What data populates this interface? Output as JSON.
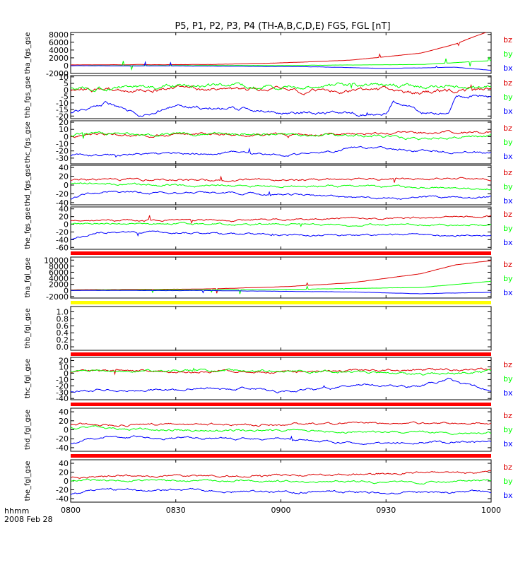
{
  "title": "P5, P1, P2, P3, P4 (TH-A,B,C,D,E) FGS, FGL [nT]",
  "footer": {
    "unit_label": "hhmm",
    "date_label": "2008 Feb 28"
  },
  "colors": {
    "bx": "#0000ff",
    "by": "#00ff00",
    "bz": "#dd0000",
    "bar_red": "#ff0000",
    "bar_yellow": "#ffff00",
    "frame": "#000000"
  },
  "chart_data": {
    "type": "line",
    "x_axis": {
      "range": [
        "0800",
        "1000"
      ],
      "ticks": [
        "0800",
        "0830",
        "0900",
        "0930",
        "1000"
      ],
      "tick_minutes": [
        0,
        30,
        60,
        90,
        120
      ]
    },
    "panels": [
      {
        "ylabel": "tha_fgs_gse",
        "ticks": [
          "-2000",
          "0",
          "2000",
          "4000",
          "6000",
          "8000"
        ],
        "ylim": [
          -2000,
          8500
        ],
        "series": [
          {
            "name": "bz",
            "anchors": [
              [
                0,
                200
              ],
              [
                40,
                300
              ],
              [
                60,
                700
              ],
              [
                80,
                1400
              ],
              [
                100,
                3200
              ],
              [
                110,
                5600
              ],
              [
                115,
                7400
              ],
              [
                120,
                9000
              ]
            ],
            "noise": 15
          },
          {
            "name": "by",
            "anchors": [
              [
                0,
                0
              ],
              [
                60,
                50
              ],
              [
                100,
                300
              ],
              [
                120,
                1300
              ]
            ],
            "noise": 15
          },
          {
            "name": "bx",
            "anchors": [
              [
                0,
                0
              ],
              [
                40,
                -100
              ],
              [
                70,
                -300
              ],
              [
                90,
                -700
              ],
              [
                110,
                -400
              ],
              [
                120,
                -1200
              ]
            ],
            "noise": 15
          }
        ]
      },
      {
        "ylabel": "thb_fgs_gse",
        "ticks": [
          "-20",
          "-15",
          "-10",
          "-5",
          "0",
          "5",
          "10"
        ],
        "ylim": [
          -22,
          11
        ],
        "series": [
          {
            "name": "bz",
            "anchors": [
              [
                0,
                0
              ],
              [
                20,
                1
              ],
              [
                60,
                0
              ],
              [
                100,
                -1
              ],
              [
                120,
                0
              ]
            ],
            "noise": 1
          },
          {
            "name": "by",
            "anchors": [
              [
                0,
                2
              ],
              [
                60,
                3
              ],
              [
                100,
                3
              ],
              [
                120,
                1
              ]
            ],
            "noise": 1
          },
          {
            "name": "bx",
            "anchors": [
              [
                0,
                -17
              ],
              [
                5,
                -14
              ],
              [
                10,
                -10
              ],
              [
                20,
                -19
              ],
              [
                30,
                -12
              ],
              [
                40,
                -13
              ],
              [
                50,
                -15
              ],
              [
                60,
                -17
              ],
              [
                75,
                -18
              ],
              [
                90,
                -19
              ],
              [
                92,
                -10
              ],
              [
                97,
                -12
              ],
              [
                100,
                -17
              ],
              [
                108,
                -17
              ],
              [
                110,
                -6
              ],
              [
                120,
                -4
              ]
            ],
            "noise": 0.8
          }
        ]
      },
      {
        "ylabel": "thc_fgs_gse",
        "ticks": [
          "-30",
          "-20",
          "-10",
          "0",
          "10",
          "20"
        ],
        "ylim": [
          -38,
          22
        ],
        "series": [
          {
            "name": "bz",
            "anchors": [
              [
                0,
                2
              ],
              [
                60,
                3
              ],
              [
                100,
                5
              ],
              [
                120,
                6
              ]
            ],
            "noise": 1.2
          },
          {
            "name": "by",
            "anchors": [
              [
                0,
                3
              ],
              [
                60,
                4
              ],
              [
                100,
                -2
              ],
              [
                120,
                1
              ]
            ],
            "noise": 1.2
          },
          {
            "name": "bx",
            "anchors": [
              [
                0,
                -26
              ],
              [
                30,
                -24
              ],
              [
                50,
                -22
              ],
              [
                60,
                -26
              ],
              [
                75,
                -22
              ],
              [
                80,
                -14
              ],
              [
                100,
                -19
              ],
              [
                120,
                -23
              ]
            ],
            "noise": 1
          }
        ]
      },
      {
        "ylabel": "thd_fgs_gse",
        "ticks": [
          "-40",
          "-20",
          "0",
          "20",
          "40"
        ],
        "ylim": [
          -45,
          45
        ],
        "series": [
          {
            "name": "bz",
            "anchors": [
              [
                0,
                12
              ],
              [
                30,
                12
              ],
              [
                60,
                12
              ],
              [
                100,
                15
              ],
              [
                120,
                15
              ]
            ],
            "noise": 1.5
          },
          {
            "name": "by",
            "anchors": [
              [
                0,
                5
              ],
              [
                30,
                0
              ],
              [
                60,
                -2
              ],
              [
                100,
                -5
              ],
              [
                120,
                -8
              ]
            ],
            "noise": 1.5
          },
          {
            "name": "bx",
            "anchors": [
              [
                0,
                -30
              ],
              [
                5,
                -20
              ],
              [
                10,
                -15
              ],
              [
                30,
                -18
              ],
              [
                60,
                -20
              ],
              [
                80,
                -30
              ],
              [
                100,
                -28
              ],
              [
                120,
                -28
              ]
            ],
            "noise": 1.5
          }
        ]
      },
      {
        "ylabel": "the_fgs_gse",
        "ticks": [
          "-60",
          "-40",
          "-20",
          "0",
          "20",
          "40"
        ],
        "ylim": [
          -65,
          45
        ],
        "series": [
          {
            "name": "bz",
            "anchors": [
              [
                0,
                10
              ],
              [
                60,
                12
              ],
              [
                100,
                18
              ],
              [
                120,
                20
              ]
            ],
            "noise": 1.5
          },
          {
            "name": "by",
            "anchors": [
              [
                0,
                2
              ],
              [
                60,
                0
              ],
              [
                100,
                -2
              ],
              [
                120,
                0
              ]
            ],
            "noise": 1.5
          },
          {
            "name": "bx",
            "anchors": [
              [
                0,
                -38
              ],
              [
                8,
                -20
              ],
              [
                30,
                -22
              ],
              [
                60,
                -28
              ],
              [
                100,
                -28
              ],
              [
                120,
                -28
              ]
            ],
            "noise": 1.5
          }
        ]
      },
      {
        "ylabel": "tha_fgl_gse",
        "ticks": [
          "-2000",
          "0",
          "2000",
          "4000",
          "6000",
          "8000",
          "10000"
        ],
        "ylim": [
          -2500,
          11000
        ],
        "series": [
          {
            "name": "bz",
            "anchors": [
              [
                0,
                200
              ],
              [
                40,
                500
              ],
              [
                60,
                1200
              ],
              [
                80,
                2500
              ],
              [
                100,
                5500
              ],
              [
                110,
                8500
              ],
              [
                120,
                9800
              ]
            ],
            "noise": 20
          },
          {
            "name": "by",
            "anchors": [
              [
                0,
                50
              ],
              [
                60,
                300
              ],
              [
                100,
                1000
              ],
              [
                120,
                3000
              ]
            ],
            "noise": 20
          },
          {
            "name": "bx",
            "anchors": [
              [
                0,
                0
              ],
              [
                40,
                -50
              ],
              [
                80,
                -500
              ],
              [
                100,
                -1100
              ],
              [
                120,
                -600
              ]
            ],
            "noise": 20
          }
        ]
      },
      {
        "ylabel": "thb_fgl_gse",
        "ticks": [
          "0.0",
          "0.2",
          "0.4",
          "0.6",
          "0.8",
          "1.0"
        ],
        "ylim": [
          -0.1,
          1.15
        ],
        "series": []
      },
      {
        "ylabel": "thc_fgl_gse",
        "ticks": [
          "-40",
          "-30",
          "-20",
          "-10",
          "0",
          "10",
          "20"
        ],
        "ylim": [
          -42,
          25
        ],
        "series": [
          {
            "name": "bz",
            "anchors": [
              [
                0,
                2
              ],
              [
                60,
                3
              ],
              [
                100,
                5
              ],
              [
                120,
                6
              ]
            ],
            "noise": 1.2
          },
          {
            "name": "by",
            "anchors": [
              [
                0,
                3
              ],
              [
                60,
                4
              ],
              [
                100,
                -2
              ],
              [
                120,
                2
              ]
            ],
            "noise": 1.2
          },
          {
            "name": "bx",
            "anchors": [
              [
                0,
                -28
              ],
              [
                30,
                -25
              ],
              [
                50,
                -23
              ],
              [
                60,
                -28
              ],
              [
                75,
                -25
              ],
              [
                80,
                -18
              ],
              [
                100,
                -22
              ],
              [
                108,
                -10
              ],
              [
                120,
                -28
              ]
            ],
            "noise": 1.2
          }
        ]
      },
      {
        "ylabel": "thd_fgl_gse",
        "ticks": [
          "-40",
          "-20",
          "0",
          "20",
          "40"
        ],
        "ylim": [
          -48,
          48
        ],
        "series": [
          {
            "name": "bz",
            "anchors": [
              [
                0,
                12
              ],
              [
                30,
                12
              ],
              [
                60,
                12
              ],
              [
                100,
                15
              ],
              [
                120,
                15
              ]
            ],
            "noise": 1.5
          },
          {
            "name": "by",
            "anchors": [
              [
                0,
                5
              ],
              [
                30,
                0
              ],
              [
                60,
                -2
              ],
              [
                100,
                -5
              ],
              [
                120,
                -8
              ]
            ],
            "noise": 1.5
          },
          {
            "name": "bx",
            "anchors": [
              [
                0,
                -30
              ],
              [
                5,
                -20
              ],
              [
                10,
                -15
              ],
              [
                30,
                -18
              ],
              [
                60,
                -20
              ],
              [
                80,
                -30
              ],
              [
                100,
                -28
              ],
              [
                120,
                -28
              ]
            ],
            "noise": 1.5
          }
        ]
      },
      {
        "ylabel": "the_fgl_gse",
        "ticks": [
          "-40",
          "-20",
          "0",
          "20",
          "40"
        ],
        "ylim": [
          -48,
          48
        ],
        "series": [
          {
            "name": "bz",
            "anchors": [
              [
                0,
                10
              ],
              [
                60,
                12
              ],
              [
                100,
                18
              ],
              [
                120,
                20
              ]
            ],
            "noise": 1.5
          },
          {
            "name": "by",
            "anchors": [
              [
                0,
                2
              ],
              [
                60,
                0
              ],
              [
                100,
                -2
              ],
              [
                120,
                0
              ]
            ],
            "noise": 1.5
          },
          {
            "name": "bx",
            "anchors": [
              [
                0,
                -30
              ],
              [
                8,
                -20
              ],
              [
                30,
                -20
              ],
              [
                60,
                -25
              ],
              [
                100,
                -25
              ],
              [
                120,
                -25
              ]
            ],
            "noise": 1.5
          }
        ]
      }
    ],
    "legend": [
      "bz",
      "by",
      "bx"
    ],
    "legend_placement": "right"
  }
}
